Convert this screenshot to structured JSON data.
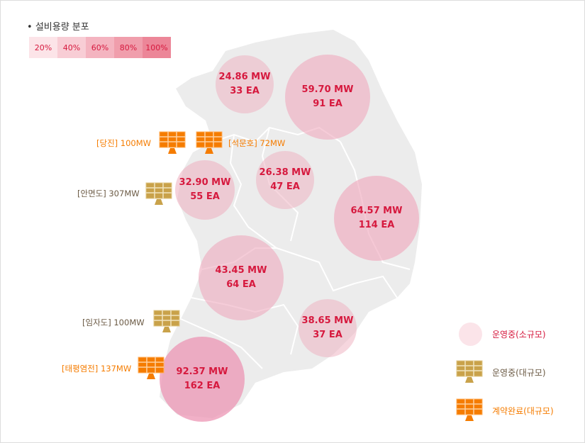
{
  "legend_title": "설비용량 분포",
  "scale": [
    {
      "label": "20%",
      "color": "#fce4e8"
    },
    {
      "label": "40%",
      "color": "#f8cdd5"
    },
    {
      "label": "60%",
      "color": "#f4b4c0"
    },
    {
      "label": "80%",
      "color": "#f09eac"
    },
    {
      "label": "100%",
      "color": "#ec8698"
    }
  ],
  "regions": [
    {
      "mw": "24.86 MW",
      "ea": "33 EA"
    },
    {
      "mw": "59.70 MW",
      "ea": "91 EA"
    },
    {
      "mw": "32.90 MW",
      "ea": "55 EA"
    },
    {
      "mw": "26.38 MW",
      "ea": "47 EA"
    },
    {
      "mw": "64.57 MW",
      "ea": "114 EA"
    },
    {
      "mw": "43.45 MW",
      "ea": "64 EA"
    },
    {
      "mw": "38.65 MW",
      "ea": "37 EA"
    },
    {
      "mw": "92.37 MW",
      "ea": "162 EA"
    }
  ],
  "plants": [
    {
      "label": "[당진] 100MW",
      "status": "contracted"
    },
    {
      "label": "[석문호] 72MW",
      "status": "contracted"
    },
    {
      "label": "[안면도] 307MW",
      "status": "operating"
    },
    {
      "label": "[임자도] 100MW",
      "status": "operating"
    },
    {
      "label": "[태평염전] 137MW",
      "status": "contracted"
    }
  ],
  "map_legend": {
    "small": "운영중(소규모)",
    "large": "운영중(대규모)",
    "contract": "계약완료(대규모)"
  },
  "colors": {
    "operating_panel": "#c9a24a",
    "contract_panel": "#f57c00",
    "text_red": "#d6193e",
    "map": "#ececec"
  }
}
